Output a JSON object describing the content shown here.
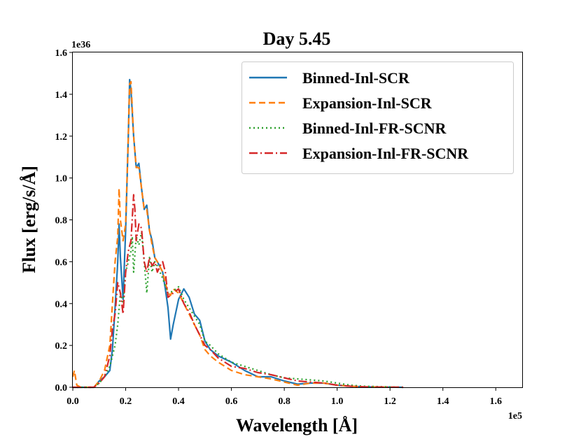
{
  "chart_data": {
    "type": "line",
    "title": "Day 5.45",
    "xlabel": "Wavelength [Å]",
    "ylabel": "Flux [erg/s/Å]",
    "xlim": [
      0,
      170000
    ],
    "ylim": [
      0,
      1.6e+36
    ],
    "x_offset_label": "1e5",
    "y_offset_label": "1e36",
    "x_ticks": [
      0,
      20000,
      40000,
      60000,
      80000,
      100000,
      120000,
      140000,
      160000
    ],
    "x_tick_labels": [
      "0.0",
      "0.2",
      "0.4",
      "0.6",
      "0.8",
      "1.0",
      "1.2",
      "1.4",
      "1.6"
    ],
    "y_ticks": [
      0,
      2e+35,
      4e+35,
      6e+35,
      8e+35,
      1e+36,
      1.2e+36,
      1.4e+36,
      1.6e+36
    ],
    "y_tick_labels": [
      "0.0",
      "0.2",
      "0.4",
      "0.6",
      "0.8",
      "1.0",
      "1.2",
      "1.4",
      "1.6"
    ],
    "grid": false,
    "legend_position": "top-right",
    "series": [
      {
        "name": "Binned-Inl-SCR",
        "color": "#1f77b4",
        "dash": "solid",
        "points": [
          [
            0,
            0
          ],
          [
            8000,
            0
          ],
          [
            10000,
            0.03
          ],
          [
            12000,
            0.05
          ],
          [
            14000,
            0.08
          ],
          [
            15000,
            0.18
          ],
          [
            16000,
            0.38
          ],
          [
            17000,
            0.6
          ],
          [
            17500,
            0.78
          ],
          [
            18000,
            0.62
          ],
          [
            19000,
            0.42
          ],
          [
            20000,
            0.75
          ],
          [
            21000,
            1.2
          ],
          [
            21500,
            1.47
          ],
          [
            22000,
            1.42
          ],
          [
            23000,
            1.2
          ],
          [
            24000,
            1.05
          ],
          [
            25000,
            1.07
          ],
          [
            26000,
            0.95
          ],
          [
            27000,
            0.85
          ],
          [
            28000,
            0.87
          ],
          [
            29000,
            0.75
          ],
          [
            30000,
            0.7
          ],
          [
            31000,
            0.62
          ],
          [
            32000,
            0.6
          ],
          [
            34000,
            0.55
          ],
          [
            35000,
            0.47
          ],
          [
            36000,
            0.38
          ],
          [
            37000,
            0.23
          ],
          [
            38000,
            0.3
          ],
          [
            40000,
            0.42
          ],
          [
            42000,
            0.47
          ],
          [
            44000,
            0.43
          ],
          [
            46000,
            0.35
          ],
          [
            48000,
            0.32
          ],
          [
            50000,
            0.22
          ],
          [
            52000,
            0.18
          ],
          [
            55000,
            0.15
          ],
          [
            60000,
            0.12
          ],
          [
            65000,
            0.08
          ],
          [
            70000,
            0.05
          ],
          [
            75000,
            0.05
          ],
          [
            80000,
            0.03
          ],
          [
            85000,
            0.015
          ],
          [
            90000,
            0.02
          ],
          [
            95000,
            0.02
          ],
          [
            100000,
            0.01
          ],
          [
            105000,
            0.005
          ],
          [
            110000,
            0.002
          ],
          [
            125000,
            0
          ]
        ]
      },
      {
        "name": "Expansion-Inl-SCR",
        "color": "#ff7f0e",
        "dash": "9,5",
        "points": [
          [
            0,
            0.05
          ],
          [
            600,
            0.08
          ],
          [
            1500,
            0.01
          ],
          [
            3000,
            0
          ],
          [
            8000,
            0
          ],
          [
            10000,
            0.03
          ],
          [
            12000,
            0.08
          ],
          [
            14000,
            0.2
          ],
          [
            15000,
            0.4
          ],
          [
            16000,
            0.6
          ],
          [
            17000,
            0.72
          ],
          [
            17500,
            0.95
          ],
          [
            18000,
            0.8
          ],
          [
            19000,
            0.7
          ],
          [
            20000,
            0.78
          ],
          [
            21000,
            1.2
          ],
          [
            21500,
            1.45
          ],
          [
            22000,
            1.46
          ],
          [
            23000,
            1.2
          ],
          [
            24000,
            1.05
          ],
          [
            25000,
            1.05
          ],
          [
            26000,
            0.95
          ],
          [
            27000,
            0.85
          ],
          [
            28000,
            0.85
          ],
          [
            29000,
            0.75
          ],
          [
            30000,
            0.68
          ],
          [
            31000,
            0.62
          ],
          [
            32000,
            0.6
          ],
          [
            34000,
            0.55
          ],
          [
            36000,
            0.45
          ],
          [
            37000,
            0.44
          ],
          [
            38000,
            0.47
          ],
          [
            40000,
            0.45
          ],
          [
            42000,
            0.4
          ],
          [
            44000,
            0.35
          ],
          [
            46000,
            0.3
          ],
          [
            48000,
            0.25
          ],
          [
            50000,
            0.18
          ],
          [
            52000,
            0.15
          ],
          [
            55000,
            0.12
          ],
          [
            60000,
            0.08
          ],
          [
            65000,
            0.06
          ],
          [
            70000,
            0.05
          ],
          [
            75000,
            0.04
          ],
          [
            80000,
            0.025
          ],
          [
            85000,
            0.01
          ],
          [
            90000,
            0.02
          ],
          [
            95000,
            0.02
          ],
          [
            100000,
            0.01
          ],
          [
            105000,
            0.005
          ],
          [
            110000,
            0.002
          ],
          [
            124000,
            0
          ]
        ]
      },
      {
        "name": "Binned-Inl-FR-SCNR",
        "color": "#2ca02c",
        "dash": "2,4",
        "points": [
          [
            0,
            0
          ],
          [
            8000,
            0
          ],
          [
            10000,
            0.02
          ],
          [
            12000,
            0.05
          ],
          [
            14000,
            0.1
          ],
          [
            15000,
            0.15
          ],
          [
            16000,
            0.2
          ],
          [
            17000,
            0.3
          ],
          [
            18000,
            0.45
          ],
          [
            19000,
            0.4
          ],
          [
            20000,
            0.55
          ],
          [
            21000,
            0.6
          ],
          [
            22000,
            0.65
          ],
          [
            22500,
            0.72
          ],
          [
            23000,
            0.55
          ],
          [
            24000,
            0.72
          ],
          [
            25000,
            0.68
          ],
          [
            26000,
            0.74
          ],
          [
            27000,
            0.6
          ],
          [
            28000,
            0.45
          ],
          [
            29000,
            0.62
          ],
          [
            30000,
            0.55
          ],
          [
            31000,
            0.6
          ],
          [
            32000,
            0.58
          ],
          [
            34000,
            0.52
          ],
          [
            36000,
            0.45
          ],
          [
            38000,
            0.46
          ],
          [
            40000,
            0.48
          ],
          [
            42000,
            0.42
          ],
          [
            44000,
            0.38
          ],
          [
            46000,
            0.34
          ],
          [
            48000,
            0.3
          ],
          [
            50000,
            0.22
          ],
          [
            52000,
            0.2
          ],
          [
            55000,
            0.16
          ],
          [
            60000,
            0.12
          ],
          [
            65000,
            0.1
          ],
          [
            70000,
            0.08
          ],
          [
            75000,
            0.06
          ],
          [
            80000,
            0.045
          ],
          [
            85000,
            0.04
          ],
          [
            90000,
            0.035
          ],
          [
            95000,
            0.03
          ],
          [
            100000,
            0.02
          ],
          [
            105000,
            0.01
          ],
          [
            110000,
            0.005
          ],
          [
            125000,
            0
          ]
        ]
      },
      {
        "name": "Expansion-Inl-FR-SCNR",
        "color": "#d62728",
        "dash": "12,4,2,4",
        "points": [
          [
            0,
            0
          ],
          [
            8000,
            0
          ],
          [
            10000,
            0.02
          ],
          [
            12000,
            0.05
          ],
          [
            14000,
            0.15
          ],
          [
            15000,
            0.28
          ],
          [
            16000,
            0.35
          ],
          [
            17000,
            0.5
          ],
          [
            18000,
            0.45
          ],
          [
            19000,
            0.35
          ],
          [
            20000,
            0.55
          ],
          [
            21000,
            0.65
          ],
          [
            22000,
            0.7
          ],
          [
            23000,
            0.92
          ],
          [
            23500,
            0.85
          ],
          [
            24000,
            0.7
          ],
          [
            25000,
            0.78
          ],
          [
            26000,
            0.76
          ],
          [
            27000,
            0.6
          ],
          [
            28000,
            0.55
          ],
          [
            29000,
            0.62
          ],
          [
            30000,
            0.58
          ],
          [
            31000,
            0.6
          ],
          [
            32000,
            0.55
          ],
          [
            33000,
            0.58
          ],
          [
            34000,
            0.6
          ],
          [
            35000,
            0.55
          ],
          [
            36000,
            0.43
          ],
          [
            38000,
            0.45
          ],
          [
            40000,
            0.47
          ],
          [
            42000,
            0.4
          ],
          [
            44000,
            0.36
          ],
          [
            46000,
            0.3
          ],
          [
            48000,
            0.25
          ],
          [
            50000,
            0.2
          ],
          [
            52000,
            0.18
          ],
          [
            55000,
            0.14
          ],
          [
            60000,
            0.1
          ],
          [
            65000,
            0.09
          ],
          [
            70000,
            0.07
          ],
          [
            75000,
            0.06
          ],
          [
            80000,
            0.045
          ],
          [
            85000,
            0.03
          ],
          [
            90000,
            0.025
          ],
          [
            95000,
            0.02
          ],
          [
            100000,
            0.01
          ],
          [
            105000,
            0.005
          ],
          [
            110000,
            0.002
          ],
          [
            125000,
            0
          ]
        ]
      }
    ]
  }
}
